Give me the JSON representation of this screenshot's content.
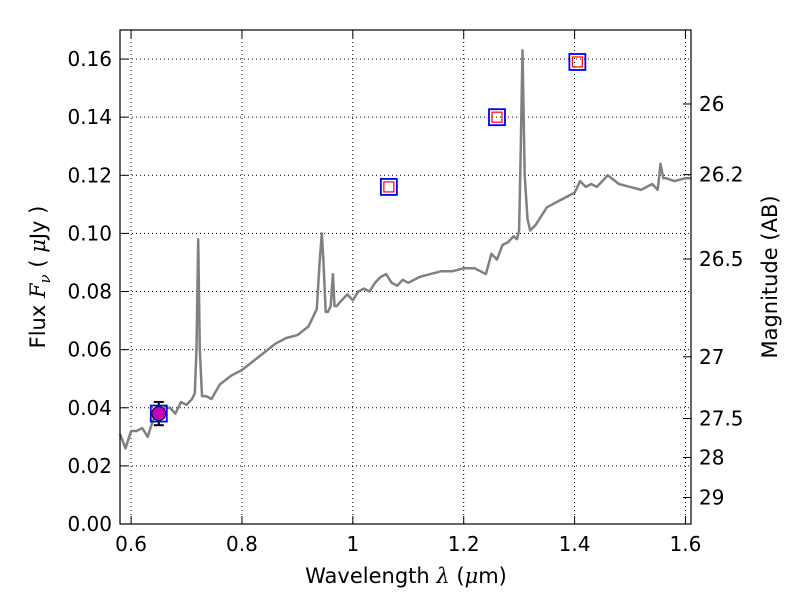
{
  "chart_data": {
    "type": "line",
    "title": "",
    "xlabel_prefix": "Wavelength ",
    "xlabel_symbol": "λ",
    "xlabel_unit_open": " (",
    "xlabel_unit_mu": "μ",
    "xlabel_unit_rest": "m)",
    "ylabel_prefix": "Flux ",
    "ylabel_symbol": "F",
    "ylabel_subscript": "ν",
    "ylabel_unit_open": " ( ",
    "ylabel_unit_mu": "μ",
    "ylabel_unit_rest": "Jy )",
    "y2label": "Magnitude (AB)",
    "xlim": [
      0.58,
      1.61
    ],
    "ylim": [
      0.0,
      0.17
    ],
    "grid": true,
    "x_ticks": [
      0.6,
      0.8,
      1.0,
      1.2,
      1.4,
      1.6
    ],
    "x_tick_labels": [
      "0.6",
      "0.8",
      "1",
      "1.2",
      "1.4",
      "1.6"
    ],
    "y_ticks": [
      0.0,
      0.02,
      0.04,
      0.06,
      0.08,
      0.1,
      0.12,
      0.14,
      0.16
    ],
    "y_tick_labels": [
      "0.00",
      "0.02",
      "0.04",
      "0.06",
      "0.08",
      "0.10",
      "0.12",
      "0.14",
      "0.16"
    ],
    "y2_ticks": [
      26,
      26.2,
      26.5,
      27,
      27.5,
      28,
      29
    ],
    "y2_tick_labels": [
      "26",
      "26.2",
      "26.5",
      "27",
      "27.5",
      "28",
      "29"
    ],
    "spectrum": {
      "color": "#808080",
      "x": [
        0.58,
        0.59,
        0.6,
        0.61,
        0.62,
        0.63,
        0.64,
        0.65,
        0.66,
        0.67,
        0.68,
        0.69,
        0.7,
        0.71,
        0.715,
        0.718,
        0.721,
        0.724,
        0.728,
        0.735,
        0.745,
        0.76,
        0.78,
        0.8,
        0.82,
        0.84,
        0.86,
        0.88,
        0.9,
        0.92,
        0.935,
        0.94,
        0.944,
        0.947,
        0.951,
        0.955,
        0.96,
        0.964,
        0.967,
        0.971,
        0.975,
        0.99,
        1.0,
        1.01,
        1.02,
        1.03,
        1.04,
        1.05,
        1.06,
        1.07,
        1.08,
        1.09,
        1.1,
        1.12,
        1.14,
        1.16,
        1.18,
        1.2,
        1.22,
        1.24,
        1.25,
        1.26,
        1.27,
        1.28,
        1.29,
        1.296,
        1.3,
        1.303,
        1.306,
        1.31,
        1.315,
        1.32,
        1.33,
        1.34,
        1.35,
        1.37,
        1.39,
        1.4,
        1.41,
        1.42,
        1.43,
        1.44,
        1.46,
        1.48,
        1.5,
        1.52,
        1.54,
        1.55,
        1.555,
        1.56,
        1.565,
        1.58,
        1.6,
        1.61
      ],
      "y": [
        0.031,
        0.026,
        0.032,
        0.032,
        0.033,
        0.03,
        0.036,
        0.037,
        0.04,
        0.04,
        0.038,
        0.042,
        0.041,
        0.043,
        0.045,
        0.06,
        0.098,
        0.06,
        0.044,
        0.044,
        0.043,
        0.048,
        0.051,
        0.053,
        0.056,
        0.059,
        0.062,
        0.064,
        0.065,
        0.068,
        0.074,
        0.09,
        0.1,
        0.09,
        0.073,
        0.073,
        0.075,
        0.086,
        0.075,
        0.075,
        0.076,
        0.079,
        0.077,
        0.08,
        0.081,
        0.08,
        0.083,
        0.085,
        0.086,
        0.083,
        0.082,
        0.084,
        0.083,
        0.085,
        0.086,
        0.087,
        0.087,
        0.088,
        0.088,
        0.086,
        0.093,
        0.091,
        0.096,
        0.097,
        0.099,
        0.098,
        0.101,
        0.13,
        0.163,
        0.12,
        0.105,
        0.101,
        0.103,
        0.106,
        0.109,
        0.111,
        0.113,
        0.114,
        0.118,
        0.116,
        0.117,
        0.116,
        0.12,
        0.117,
        0.116,
        0.115,
        0.117,
        0.115,
        0.124,
        0.119,
        0.119,
        0.118,
        0.119,
        0.119
      ]
    },
    "photometry": [
      {
        "x": 1.065,
        "y": 0.116
      },
      {
        "x": 1.26,
        "y": 0.14
      },
      {
        "x": 1.405,
        "y": 0.159
      }
    ],
    "detection": {
      "x": 0.65,
      "y": 0.038,
      "yerr": 0.004
    },
    "colors": {
      "square_outer": "#0000ff",
      "square_inner": "#ff0000",
      "detection_fill": "#bf00bf",
      "grid": "#000000"
    }
  }
}
